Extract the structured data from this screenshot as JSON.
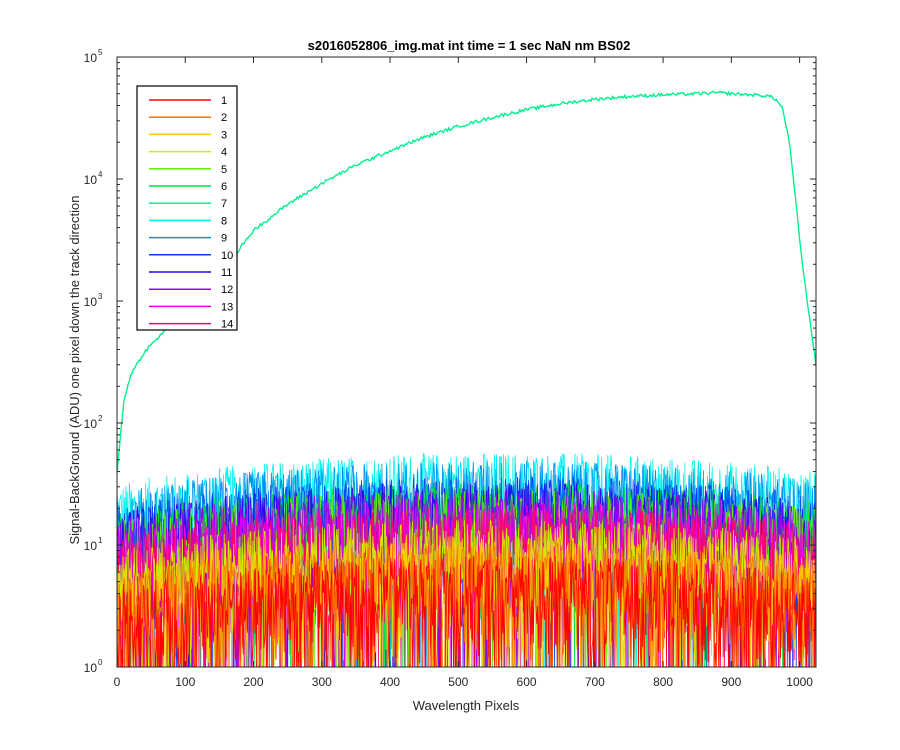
{
  "chart_data": {
    "type": "line",
    "title": "s2016052806_img.mat int time = 1 sec  NaN nm BS02",
    "xlabel": "Wavelength Pixels",
    "ylabel": "Signal-BackGround (ADU) one pixel down the track direction",
    "xlim": [
      0,
      1024
    ],
    "ylim": [
      1,
      100000
    ],
    "yscale": "log",
    "grid": false,
    "legend_position": "top-left",
    "x_ticks": [
      0,
      100,
      200,
      300,
      400,
      500,
      600,
      700,
      800,
      900,
      1000
    ],
    "y_ticks": [
      {
        "base": "10",
        "exp": "0",
        "value": 1
      },
      {
        "base": "10",
        "exp": "1",
        "value": 10
      },
      {
        "base": "10",
        "exp": "2",
        "value": 100
      },
      {
        "base": "10",
        "exp": "3",
        "value": 1000
      },
      {
        "base": "10",
        "exp": "4",
        "value": 10000
      },
      {
        "base": "10",
        "exp": "5",
        "value": 100000
      }
    ],
    "series": [
      {
        "name": "1",
        "color": "#ff0000",
        "kind": "noise",
        "level": 4
      },
      {
        "name": "2",
        "color": "#ff7000",
        "kind": "noise",
        "level": 5
      },
      {
        "name": "3",
        "color": "#ffc800",
        "kind": "noise",
        "level": 6
      },
      {
        "name": "4",
        "color": "#c8f000",
        "kind": "noise",
        "level": 8
      },
      {
        "name": "5",
        "color": "#60f000",
        "kind": "noise",
        "level": 14
      },
      {
        "name": "6",
        "color": "#00e040",
        "kind": "noise",
        "level": 16
      },
      {
        "name": "7",
        "color": "#00f090",
        "kind": "signal",
        "x": [
          0,
          10,
          20,
          40,
          60,
          80,
          100,
          120,
          150,
          180,
          200,
          250,
          300,
          350,
          400,
          450,
          500,
          550,
          600,
          650,
          700,
          750,
          800,
          850,
          880,
          900,
          930,
          955,
          965,
          975,
          985,
          995,
          1005,
          1015,
          1024
        ],
        "values": [
          40,
          150,
          250,
          380,
          500,
          650,
          800,
          1050,
          1700,
          2700,
          3800,
          6200,
          9200,
          13000,
          17000,
          22000,
          27000,
          32000,
          37000,
          41500,
          45000,
          47500,
          49000,
          50000,
          51000,
          50000,
          49000,
          48000,
          45000,
          38000,
          20000,
          6000,
          1800,
          700,
          300
        ]
      },
      {
        "name": "8",
        "color": "#00f0f0",
        "kind": "noise",
        "level": 28
      },
      {
        "name": "9",
        "color": "#0090f0",
        "kind": "noise",
        "level": 24
      },
      {
        "name": "10",
        "color": "#0040f0",
        "kind": "noise",
        "level": 18
      },
      {
        "name": "11",
        "color": "#3000f0",
        "kind": "noise",
        "level": 16
      },
      {
        "name": "12",
        "color": "#a000f0",
        "kind": "noise",
        "level": 14
      },
      {
        "name": "13",
        "color": "#f000e0",
        "kind": "noise",
        "level": 11
      },
      {
        "name": "14",
        "color": "#ff0070",
        "kind": "noise",
        "level": 10
      }
    ]
  }
}
